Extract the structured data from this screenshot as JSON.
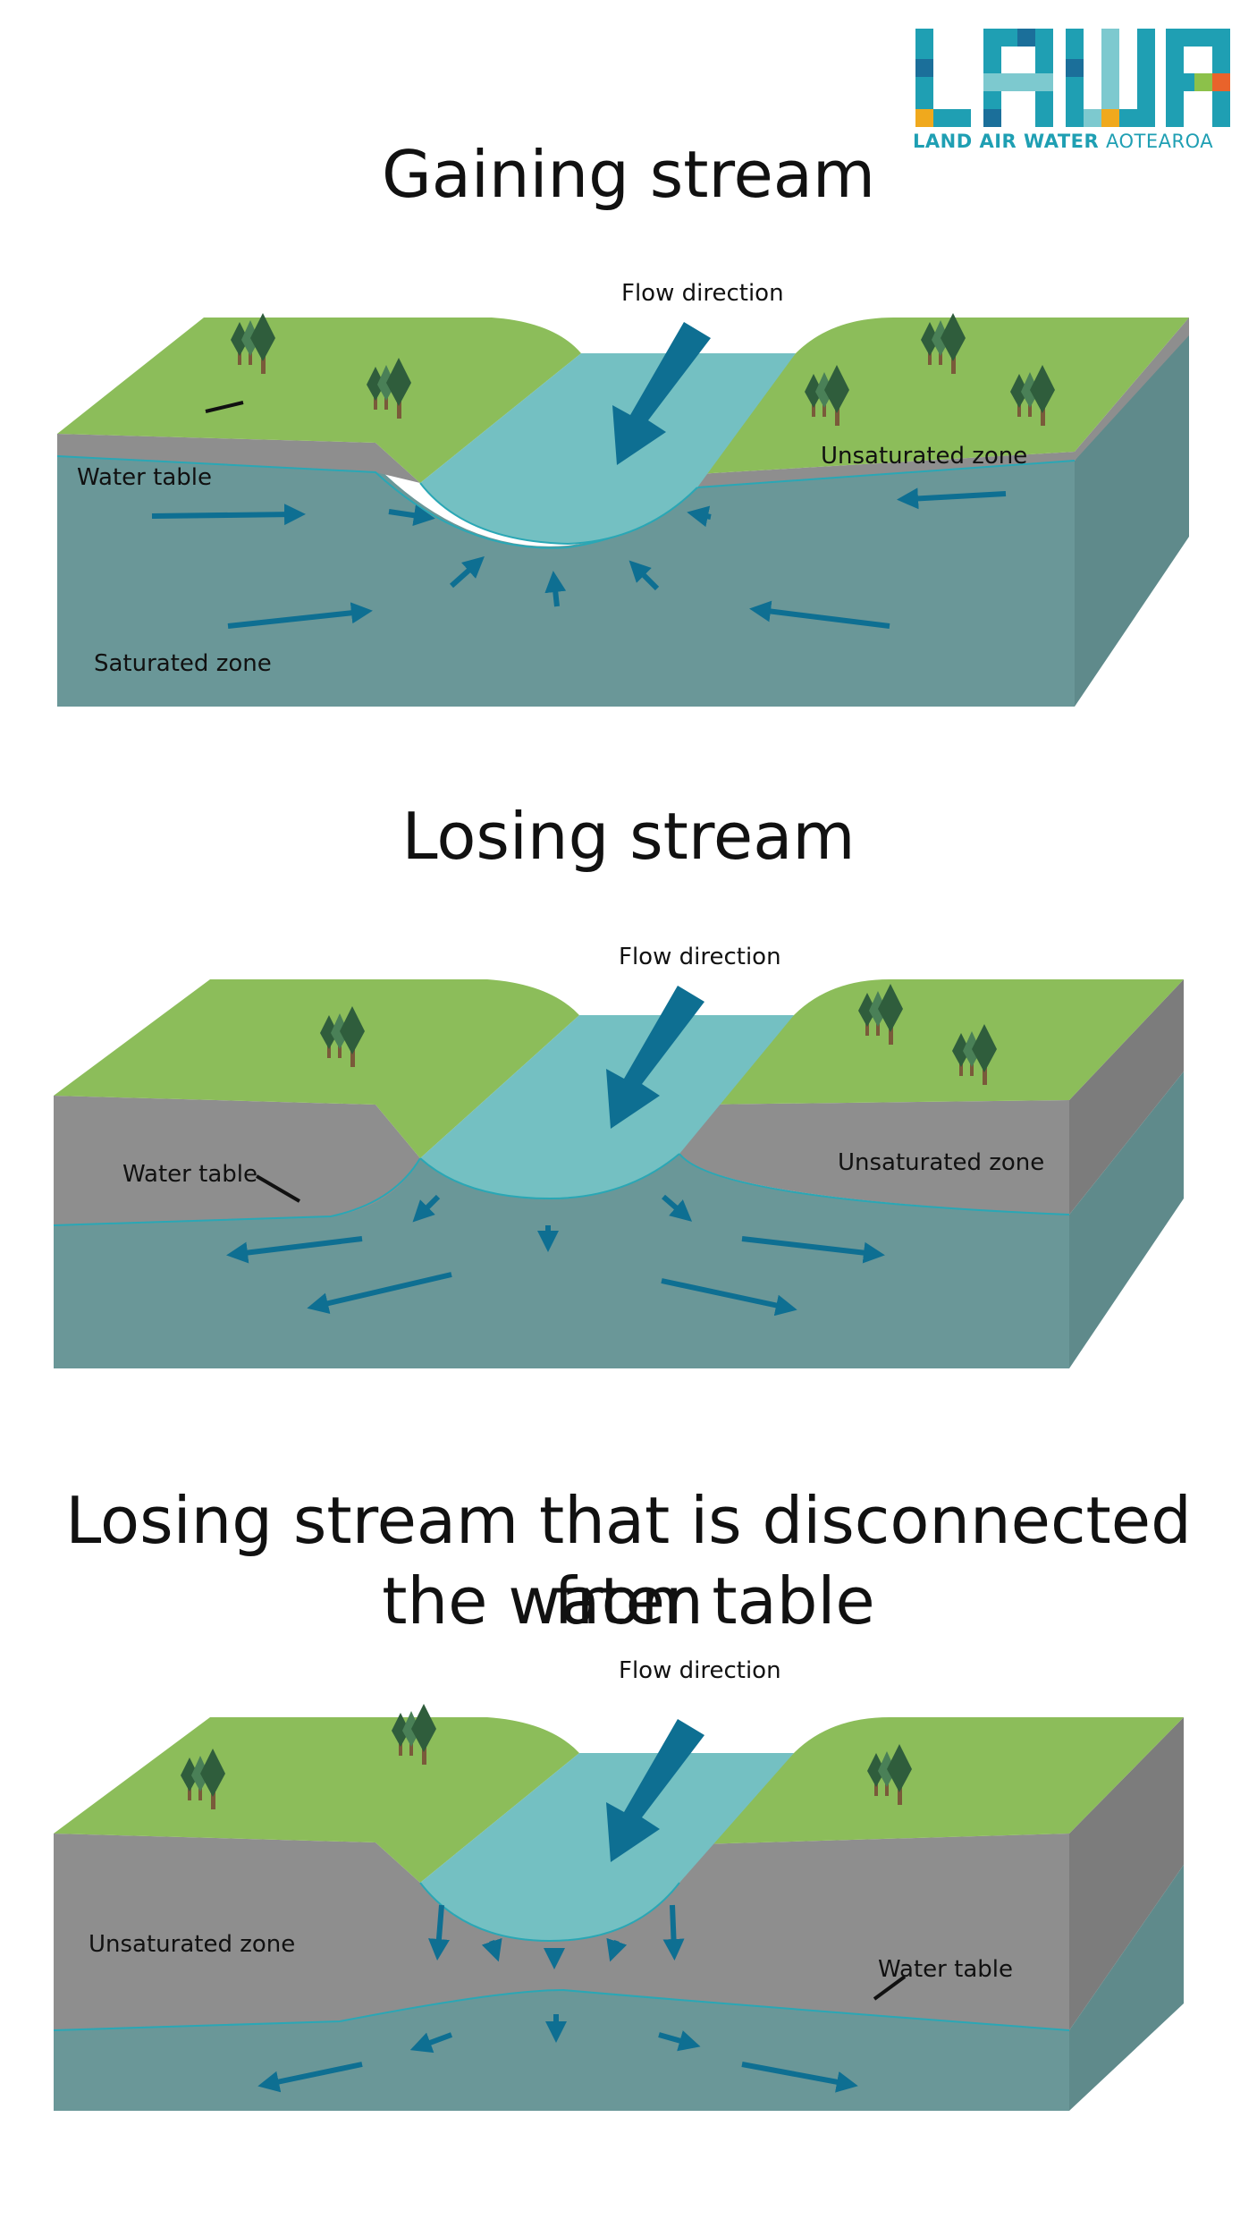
{
  "logo": {
    "letters": "LAWA",
    "tagline_bold": "LAND AIR WATER",
    "tagline_light": "AOTEAROA",
    "colors": [
      "#1f9fb3",
      "#7dc9cf",
      "#1b6f9a",
      "#f0a91d",
      "#e9632b",
      "#8cc14a"
    ]
  },
  "colors": {
    "grass": "#8cbd5a",
    "unsaturated": "#8e8e8e",
    "saturated": "#6a9798",
    "river": "#74c0c2",
    "arrow": "#0e6f92",
    "tree_dark": "#2f5d3c",
    "tree_light": "#4a8057",
    "trunk": "#7a5a3a"
  },
  "sections": [
    {
      "title": "Gaining stream",
      "labels": {
        "flow": "Flow direction",
        "water_table": "Water table",
        "unsaturated": "Unsaturated zone",
        "saturated": "Saturated zone"
      }
    },
    {
      "title": "Losing stream",
      "labels": {
        "flow": "Flow direction",
        "water_table": "Water table",
        "unsaturated": "Unsaturated zone"
      }
    },
    {
      "title_line1": "Losing stream that is disconnected from",
      "title_line2": "the water table",
      "labels": {
        "flow": "Flow direction",
        "unsaturated": "Unsaturated zone",
        "water_table": "Water table"
      }
    }
  ]
}
